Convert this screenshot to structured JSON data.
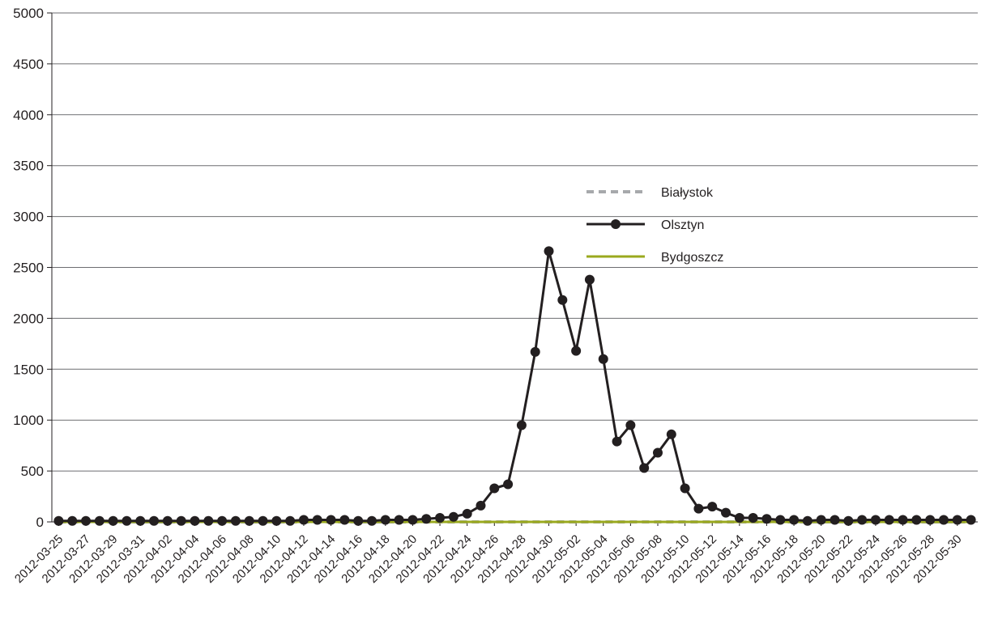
{
  "chart_data": {
    "type": "line",
    "title": "",
    "xlabel": "",
    "ylabel": "",
    "ylim": [
      0,
      5000
    ],
    "yticks": [
      0,
      500,
      1000,
      1500,
      2000,
      2500,
      3000,
      3500,
      4000,
      4500,
      5000
    ],
    "grid": true,
    "legend_position": "center-right",
    "x_start": "2012-03-25",
    "x_end": "2012-05-31",
    "x_tick_labels": [
      "2012-03-25",
      "2012-03-27",
      "2012-03-29",
      "2012-03-31",
      "2012-04-02",
      "2012-04-04",
      "2012-04-06",
      "2012-04-08",
      "2012-04-10",
      "2012-04-12",
      "2012-04-14",
      "2012-04-16",
      "2012-04-18",
      "2012-04-20",
      "2012-04-22",
      "2012-04-24",
      "2012-04-26",
      "2012-04-28",
      "2012-04-30",
      "2012-05-02",
      "2012-05-04",
      "2012-05-06",
      "2012-05-08",
      "2012-05-10",
      "2012-05-12",
      "2012-05-14",
      "2012-05-16",
      "2012-05-18",
      "2012-05-20",
      "2012-05-22",
      "2012-05-24",
      "2012-05-26",
      "2012-05-28",
      "2012-05-30"
    ],
    "series": [
      {
        "name": "Białystok",
        "color": "#a7a9ac",
        "style": "dashed",
        "marker": "none",
        "values": [
          0,
          0,
          0,
          0,
          0,
          0,
          0,
          0,
          0,
          0,
          0,
          0,
          0,
          0,
          0,
          0,
          0,
          0,
          0,
          0,
          0,
          0,
          0,
          0,
          0,
          0,
          0,
          0,
          0,
          0,
          0,
          0,
          0,
          0,
          0,
          0,
          0,
          0,
          0,
          0,
          0,
          0,
          0,
          0,
          0,
          0,
          0,
          0,
          0,
          0,
          0,
          0,
          0,
          0,
          0,
          0,
          0,
          0,
          0,
          0,
          0,
          0,
          0,
          0,
          0,
          0,
          0,
          0
        ]
      },
      {
        "name": "Olsztyn",
        "color": "#231f20",
        "style": "solid",
        "marker": "circle",
        "values": [
          10,
          10,
          10,
          10,
          10,
          10,
          10,
          10,
          10,
          10,
          10,
          10,
          10,
          10,
          10,
          10,
          10,
          10,
          20,
          20,
          20,
          20,
          10,
          10,
          20,
          20,
          20,
          30,
          40,
          50,
          80,
          160,
          330,
          370,
          950,
          1670,
          2660,
          2180,
          1680,
          2380,
          1600,
          790,
          950,
          530,
          680,
          860,
          330,
          130,
          150,
          90,
          40,
          40,
          30,
          20,
          20,
          10,
          20,
          20,
          10,
          20,
          20,
          20,
          20,
          20,
          20,
          20,
          20,
          20
        ]
      },
      {
        "name": "Bydgoszcz",
        "color": "#9aa91e",
        "style": "solid",
        "marker": "none",
        "values": [
          0,
          0,
          0,
          0,
          0,
          0,
          0,
          0,
          0,
          0,
          0,
          0,
          0,
          0,
          0,
          0,
          0,
          0,
          0,
          0,
          0,
          0,
          0,
          0,
          0,
          0,
          0,
          0,
          0,
          0,
          0,
          0,
          0,
          0,
          0,
          0,
          0,
          0,
          0,
          0,
          0,
          0,
          0,
          0,
          0,
          0,
          0,
          0,
          0,
          0,
          0,
          0,
          0,
          0,
          0,
          0,
          0,
          0,
          0,
          0,
          0,
          0,
          0,
          0,
          0,
          0,
          0,
          0
        ]
      }
    ]
  }
}
